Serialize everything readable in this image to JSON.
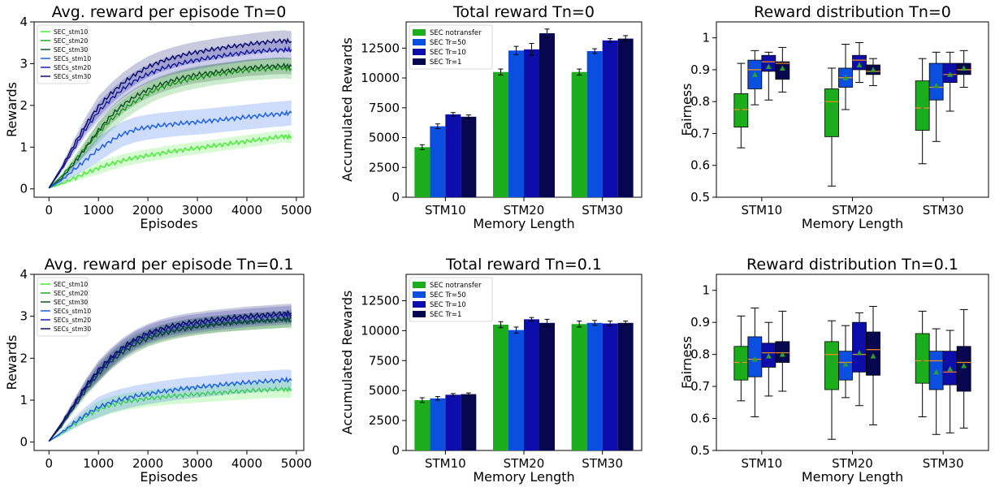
{
  "colors": {
    "SEC_stm10": "#44ee33",
    "SEC_stm20": "#22aa22",
    "SEC_stm30": "#115522",
    "SECs_stm10": "#1c5ee6",
    "SECs_stm20": "#1a1fb0",
    "SECs_stm30": "#0d0d6e",
    "SEC notransfer": "#1bad1b",
    "SEC Tr=50": "#0b4fe0",
    "SEC Tr=10": "#0d0dab",
    "SEC Tr=1": "#07074f",
    "median": "#ff8c1a",
    "mean_marker": "#2ca02c",
    "grid_axis": "#000000"
  },
  "chart_data": [
    {
      "type": "line",
      "title": "Avg. reward per episode Tn=0",
      "xlabel": "Episodes",
      "ylabel": "Rewards",
      "xlim": [
        -300,
        5150
      ],
      "ylim": [
        -0.2,
        4
      ],
      "xticks": [
        0,
        1000,
        2000,
        3000,
        4000,
        5000
      ],
      "yticks": [
        0,
        1,
        2,
        3,
        4
      ],
      "legend": "top-left",
      "x": [
        0,
        250,
        500,
        750,
        1000,
        1250,
        1500,
        1750,
        2000,
        2250,
        2500,
        2750,
        3000,
        3250,
        3500,
        3750,
        4000,
        4250,
        4500,
        4750,
        4900
      ],
      "series": [
        {
          "name": "SEC_stm10",
          "band": 0.15,
          "values": [
            0.02,
            0.12,
            0.25,
            0.38,
            0.5,
            0.6,
            0.68,
            0.75,
            0.8,
            0.85,
            0.9,
            0.94,
            0.98,
            1.02,
            1.06,
            1.1,
            1.14,
            1.18,
            1.22,
            1.26,
            1.24
          ]
        },
        {
          "name": "SEC_stm20",
          "band": 0.25,
          "values": [
            0.02,
            0.3,
            0.65,
            1.0,
            1.35,
            1.65,
            1.9,
            2.1,
            2.28,
            2.42,
            2.52,
            2.6,
            2.66,
            2.72,
            2.76,
            2.8,
            2.84,
            2.86,
            2.88,
            2.9,
            2.88
          ]
        },
        {
          "name": "SEC_stm30",
          "band": 0.2,
          "values": [
            0.02,
            0.25,
            0.6,
            1.0,
            1.4,
            1.75,
            2.02,
            2.22,
            2.38,
            2.5,
            2.6,
            2.68,
            2.74,
            2.78,
            2.82,
            2.86,
            2.9,
            2.92,
            2.94,
            2.95,
            2.94
          ]
        },
        {
          "name": "SECs_stm10",
          "band": 0.3,
          "values": [
            0.02,
            0.2,
            0.45,
            0.7,
            0.95,
            1.15,
            1.32,
            1.42,
            1.48,
            1.52,
            1.55,
            1.58,
            1.6,
            1.63,
            1.66,
            1.69,
            1.72,
            1.75,
            1.78,
            1.8,
            1.82
          ]
        },
        {
          "name": "SECs_stm20",
          "band": 0.22,
          "values": [
            0.02,
            0.45,
            0.95,
            1.45,
            1.85,
            2.15,
            2.4,
            2.6,
            2.75,
            2.87,
            2.96,
            3.03,
            3.09,
            3.14,
            3.19,
            3.23,
            3.27,
            3.3,
            3.32,
            3.33,
            3.33
          ]
        },
        {
          "name": "SECs_stm30",
          "band": 0.25,
          "values": [
            0.02,
            0.5,
            1.05,
            1.55,
            1.97,
            2.28,
            2.54,
            2.75,
            2.92,
            3.05,
            3.14,
            3.22,
            3.28,
            3.33,
            3.38,
            3.42,
            3.46,
            3.5,
            3.53,
            3.55,
            3.53
          ]
        }
      ]
    },
    {
      "type": "bar",
      "title": "Total reward Tn=0",
      "xlabel": "Memory Length",
      "ylabel": "Accumulated Rewards",
      "ylim": [
        0,
        14700
      ],
      "yticks": [
        0,
        2500,
        5000,
        7500,
        10000,
        12500
      ],
      "legend": "top-left",
      "categories": [
        "STM10",
        "STM20",
        "STM30"
      ],
      "series": [
        {
          "name": "SEC notransfer",
          "values": [
            4200,
            10500,
            10500
          ],
          "err": [
            200,
            250,
            250
          ]
        },
        {
          "name": "SEC Tr=50",
          "values": [
            5950,
            12300,
            12250
          ],
          "err": [
            200,
            350,
            200
          ]
        },
        {
          "name": "SEC Tr=10",
          "values": [
            6950,
            12400,
            13150
          ],
          "err": [
            150,
            500,
            150
          ]
        },
        {
          "name": "SEC Tr=1",
          "values": [
            6750,
            13750,
            13300
          ],
          "err": [
            150,
            350,
            250
          ]
        }
      ]
    },
    {
      "type": "box",
      "title": "Reward distribution Tn=0",
      "xlabel": "Memory Length",
      "ylabel": "Fairness",
      "ylim": [
        0.5,
        1.05
      ],
      "yticks": [
        0.5,
        0.6,
        0.7,
        0.8,
        0.9,
        1.0
      ],
      "categories": [
        "STM10",
        "STM20",
        "STM30"
      ],
      "series_names": [
        "SEC notransfer",
        "SEC Tr=50",
        "SEC Tr=10",
        "SEC Tr=1"
      ],
      "boxes": [
        [
          [
            0.655,
            0.72,
            0.775,
            0.825,
            0.92,
            0.775
          ],
          [
            0.79,
            0.84,
            0.9,
            0.93,
            0.96,
            0.885
          ],
          [
            0.805,
            0.895,
            0.925,
            0.945,
            0.955,
            0.91
          ],
          [
            0.83,
            0.87,
            0.92,
            0.925,
            0.97,
            0.905
          ]
        ],
        [
          [
            0.535,
            0.69,
            0.8,
            0.84,
            0.905,
            0.78
          ],
          [
            0.775,
            0.845,
            0.875,
            0.905,
            0.98,
            0.875
          ],
          [
            0.86,
            0.9,
            0.93,
            0.945,
            0.985,
            0.915
          ],
          [
            0.85,
            0.885,
            0.895,
            0.915,
            0.935,
            0.9
          ]
        ],
        [
          [
            0.605,
            0.71,
            0.78,
            0.865,
            0.935,
            0.78
          ],
          [
            0.675,
            0.805,
            0.845,
            0.92,
            0.955,
            0.85
          ],
          [
            0.77,
            0.86,
            0.885,
            0.92,
            0.955,
            0.885
          ],
          [
            0.845,
            0.885,
            0.9,
            0.92,
            0.96,
            0.905
          ]
        ]
      ]
    },
    {
      "type": "line",
      "title": "Avg. reward per episode Tn=0.1",
      "xlabel": "Episodes",
      "ylabel": "Rewards",
      "xlim": [
        -300,
        5150
      ],
      "ylim": [
        -0.2,
        4
      ],
      "xticks": [
        0,
        1000,
        2000,
        3000,
        4000,
        5000
      ],
      "yticks": [
        0,
        1,
        2,
        3,
        4
      ],
      "legend": "top-left",
      "x": [
        0,
        250,
        500,
        750,
        1000,
        1250,
        1500,
        1750,
        2000,
        2250,
        2500,
        2750,
        3000,
        3250,
        3500,
        3750,
        4000,
        4250,
        4500,
        4750,
        4900
      ],
      "series": [
        {
          "name": "SEC_stm10",
          "band": 0.2,
          "values": [
            0.02,
            0.2,
            0.42,
            0.62,
            0.78,
            0.88,
            0.95,
            1.0,
            1.04,
            1.07,
            1.1,
            1.12,
            1.14,
            1.16,
            1.18,
            1.2,
            1.22,
            1.24,
            1.25,
            1.26,
            1.25
          ]
        },
        {
          "name": "SEC_stm20",
          "band": 0.2,
          "values": [
            0.02,
            0.4,
            0.85,
            1.3,
            1.65,
            1.95,
            2.2,
            2.38,
            2.5,
            2.6,
            2.67,
            2.73,
            2.77,
            2.8,
            2.83,
            2.85,
            2.87,
            2.89,
            2.9,
            2.92,
            2.9
          ]
        },
        {
          "name": "SEC_stm30",
          "band": 0.2,
          "values": [
            0.02,
            0.38,
            0.82,
            1.25,
            1.62,
            1.92,
            2.15,
            2.33,
            2.47,
            2.57,
            2.65,
            2.7,
            2.75,
            2.79,
            2.82,
            2.85,
            2.87,
            2.89,
            2.91,
            2.93,
            2.95
          ]
        },
        {
          "name": "SECs_stm10",
          "band": 0.25,
          "values": [
            0.02,
            0.22,
            0.45,
            0.66,
            0.83,
            0.95,
            1.03,
            1.1,
            1.15,
            1.2,
            1.24,
            1.28,
            1.31,
            1.34,
            1.37,
            1.4,
            1.42,
            1.44,
            1.46,
            1.48,
            1.47
          ]
        },
        {
          "name": "SECs_stm20",
          "band": 0.22,
          "values": [
            0.02,
            0.42,
            0.88,
            1.32,
            1.68,
            1.98,
            2.23,
            2.42,
            2.56,
            2.66,
            2.73,
            2.79,
            2.83,
            2.87,
            2.9,
            2.93,
            2.96,
            2.98,
            3.0,
            3.02,
            3.03
          ]
        },
        {
          "name": "SECs_stm30",
          "band": 0.22,
          "values": [
            0.02,
            0.44,
            0.9,
            1.35,
            1.72,
            2.02,
            2.27,
            2.46,
            2.6,
            2.7,
            2.78,
            2.84,
            2.88,
            2.92,
            2.95,
            2.98,
            3.01,
            3.03,
            3.05,
            3.07,
            3.08
          ]
        }
      ]
    },
    {
      "type": "bar",
      "title": "Total reward Tn=0.1",
      "xlabel": "Memory Length",
      "ylabel": "Accumulated Rewards",
      "ylim": [
        0,
        14700
      ],
      "yticks": [
        0,
        2500,
        5000,
        7500,
        10000,
        12500
      ],
      "legend": "top-left",
      "categories": [
        "STM10",
        "STM20",
        "STM30"
      ],
      "series": [
        {
          "name": "SEC notransfer",
          "values": [
            4200,
            10500,
            10550
          ],
          "err": [
            200,
            250,
            250
          ]
        },
        {
          "name": "SEC Tr=50",
          "values": [
            4350,
            10050,
            10650
          ],
          "err": [
            150,
            250,
            200
          ]
        },
        {
          "name": "SEC Tr=10",
          "values": [
            4650,
            10950,
            10600
          ],
          "err": [
            100,
            150,
            200
          ]
        },
        {
          "name": "SEC Tr=1",
          "values": [
            4700,
            10650,
            10650
          ],
          "err": [
            100,
            300,
            150
          ]
        }
      ]
    },
    {
      "type": "box",
      "title": "Reward distribution Tn=0.1",
      "xlabel": "Memory Length",
      "ylabel": "Fairness",
      "ylim": [
        0.5,
        1.05
      ],
      "yticks": [
        0.5,
        0.6,
        0.7,
        0.8,
        0.9,
        1.0
      ],
      "categories": [
        "STM10",
        "STM20",
        "STM30"
      ],
      "series_names": [
        "SEC notransfer",
        "SEC Tr=50",
        "SEC Tr=10",
        "SEC Tr=1"
      ],
      "boxes": [
        [
          [
            0.655,
            0.72,
            0.775,
            0.825,
            0.92,
            0.775
          ],
          [
            0.605,
            0.73,
            0.785,
            0.855,
            0.945,
            0.785
          ],
          [
            0.67,
            0.76,
            0.805,
            0.835,
            0.9,
            0.795
          ],
          [
            0.685,
            0.775,
            0.805,
            0.84,
            0.935,
            0.8
          ]
        ],
        [
          [
            0.535,
            0.69,
            0.8,
            0.84,
            0.905,
            0.78
          ],
          [
            0.665,
            0.72,
            0.775,
            0.81,
            0.89,
            0.77
          ],
          [
            0.64,
            0.745,
            0.8,
            0.9,
            0.93,
            0.805
          ],
          [
            0.58,
            0.735,
            0.815,
            0.87,
            0.95,
            0.795
          ]
        ],
        [
          [
            0.605,
            0.71,
            0.78,
            0.865,
            0.935,
            0.78
          ],
          [
            0.55,
            0.69,
            0.78,
            0.81,
            0.88,
            0.745
          ],
          [
            0.555,
            0.705,
            0.745,
            0.81,
            0.875,
            0.755
          ],
          [
            0.57,
            0.685,
            0.775,
            0.825,
            0.94,
            0.765
          ]
        ]
      ]
    }
  ]
}
